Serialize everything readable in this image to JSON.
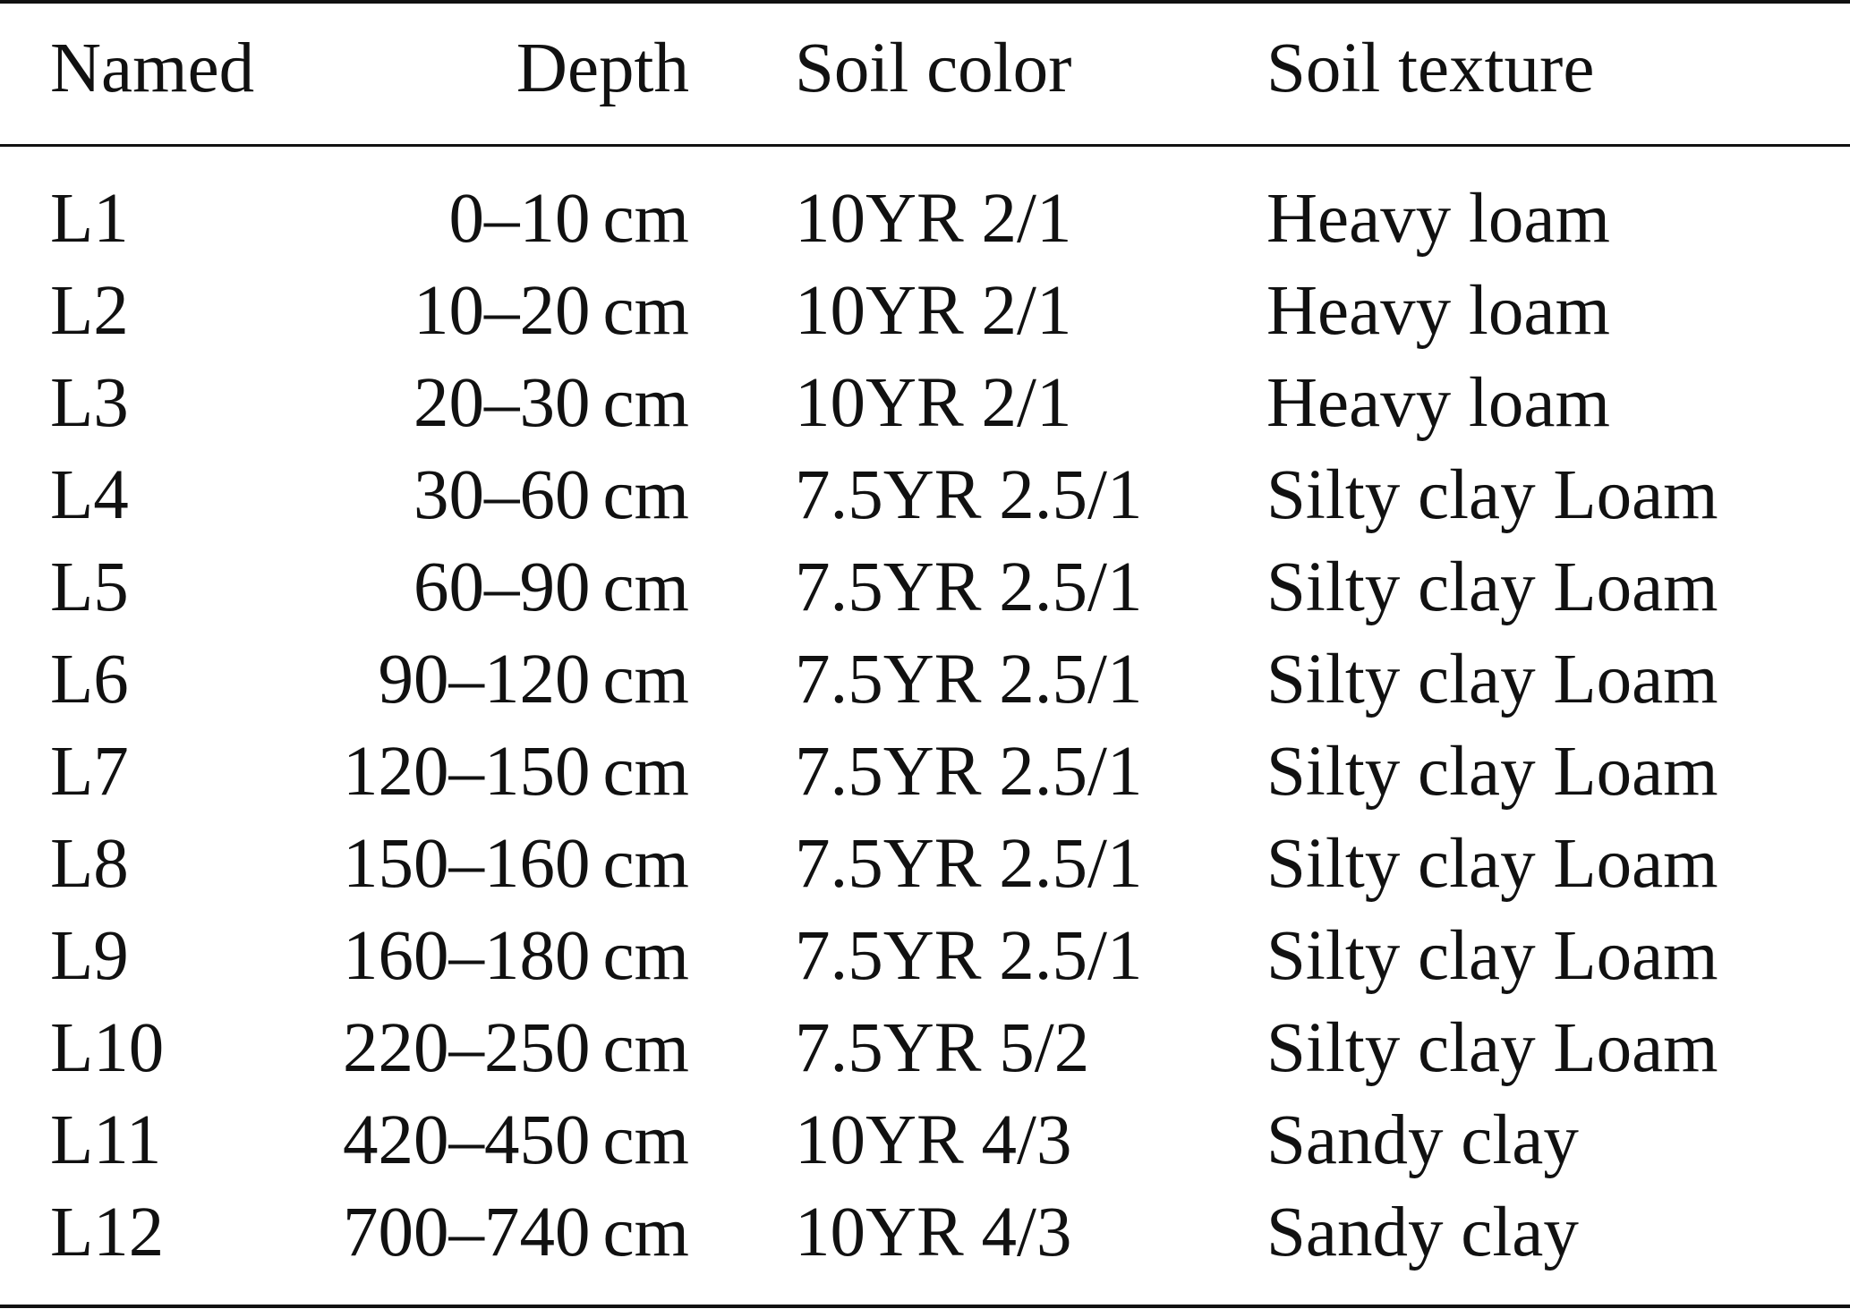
{
  "table": {
    "headers": {
      "named": "Named",
      "depth": "Depth",
      "soil_color": "Soil color",
      "soil_texture": "Soil texture"
    },
    "rows": [
      {
        "named": "L1",
        "depth": "0–10",
        "unit": "cm",
        "soil_color": "10YR 2/1",
        "soil_texture": "Heavy loam"
      },
      {
        "named": "L2",
        "depth": "10–20",
        "unit": "cm",
        "soil_color": "10YR 2/1",
        "soil_texture": "Heavy loam"
      },
      {
        "named": "L3",
        "depth": "20–30",
        "unit": "cm",
        "soil_color": "10YR 2/1",
        "soil_texture": "Heavy loam"
      },
      {
        "named": "L4",
        "depth": "30–60",
        "unit": "cm",
        "soil_color": "7.5YR 2.5/1",
        "soil_texture": "Silty clay Loam"
      },
      {
        "named": "L5",
        "depth": "60–90",
        "unit": "cm",
        "soil_color": "7.5YR 2.5/1",
        "soil_texture": "Silty clay Loam"
      },
      {
        "named": "L6",
        "depth": "90–120",
        "unit": "cm",
        "soil_color": "7.5YR 2.5/1",
        "soil_texture": "Silty clay Loam"
      },
      {
        "named": "L7",
        "depth": "120–150",
        "unit": "cm",
        "soil_color": "7.5YR 2.5/1",
        "soil_texture": "Silty clay Loam"
      },
      {
        "named": "L8",
        "depth": "150–160",
        "unit": "cm",
        "soil_color": "7.5YR 2.5/1",
        "soil_texture": "Silty clay Loam"
      },
      {
        "named": "L9",
        "depth": "160–180",
        "unit": "cm",
        "soil_color": "7.5YR 2.5/1",
        "soil_texture": "Silty clay Loam"
      },
      {
        "named": "L10",
        "depth": "220–250",
        "unit": "cm",
        "soil_color": "7.5YR 5/2",
        "soil_texture": "Silty clay Loam"
      },
      {
        "named": "L11",
        "depth": "420–450",
        "unit": "cm",
        "soil_color": "10YR 4/3",
        "soil_texture": "Sandy clay"
      },
      {
        "named": "L12",
        "depth": "700–740",
        "unit": "cm",
        "soil_color": "10YR 4/3",
        "soil_texture": "Sandy clay"
      }
    ]
  }
}
